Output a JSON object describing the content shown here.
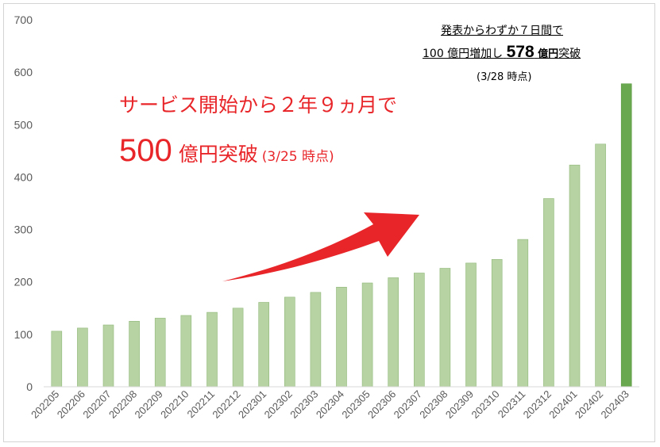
{
  "chart_data": {
    "type": "bar",
    "categories": [
      "202205",
      "202206",
      "202207",
      "202208",
      "202209",
      "202210",
      "202211",
      "202212",
      "202301",
      "202302",
      "202303",
      "202304",
      "202305",
      "202306",
      "202307",
      "202308",
      "202309",
      "202310",
      "202311",
      "202312",
      "202401",
      "202402",
      "202403"
    ],
    "values": [
      106,
      112,
      118,
      125,
      131,
      136,
      142,
      150,
      161,
      171,
      180,
      190,
      198,
      208,
      217,
      226,
      236,
      243,
      281,
      359,
      423,
      463,
      578
    ],
    "highlight_index": 22,
    "ylim": [
      0,
      700
    ],
    "yticks": [
      0,
      100,
      200,
      300,
      400,
      500,
      600,
      700
    ],
    "grid": false,
    "colors": {
      "bar": "#b7d3a4",
      "bar_edge": "#8fb878",
      "highlight": "#6aa84f",
      "highlight_edge": "#5a9a3f",
      "arrow": "#e8262a"
    }
  },
  "annotations": {
    "left_line1": "サービス開始から２年９ヵ月で",
    "left_big_number": "500",
    "left_big_unit": " 億円突破",
    "left_small": "(3/25 時点)",
    "right_line1": "発表からわずか７日間で",
    "right_line2_prefix": "100 億円増加し",
    "right_line2_number": "578",
    "right_line2_unit": "億円",
    "right_line2_suffix": "突破",
    "right_line3": "(3/28 時点)"
  }
}
